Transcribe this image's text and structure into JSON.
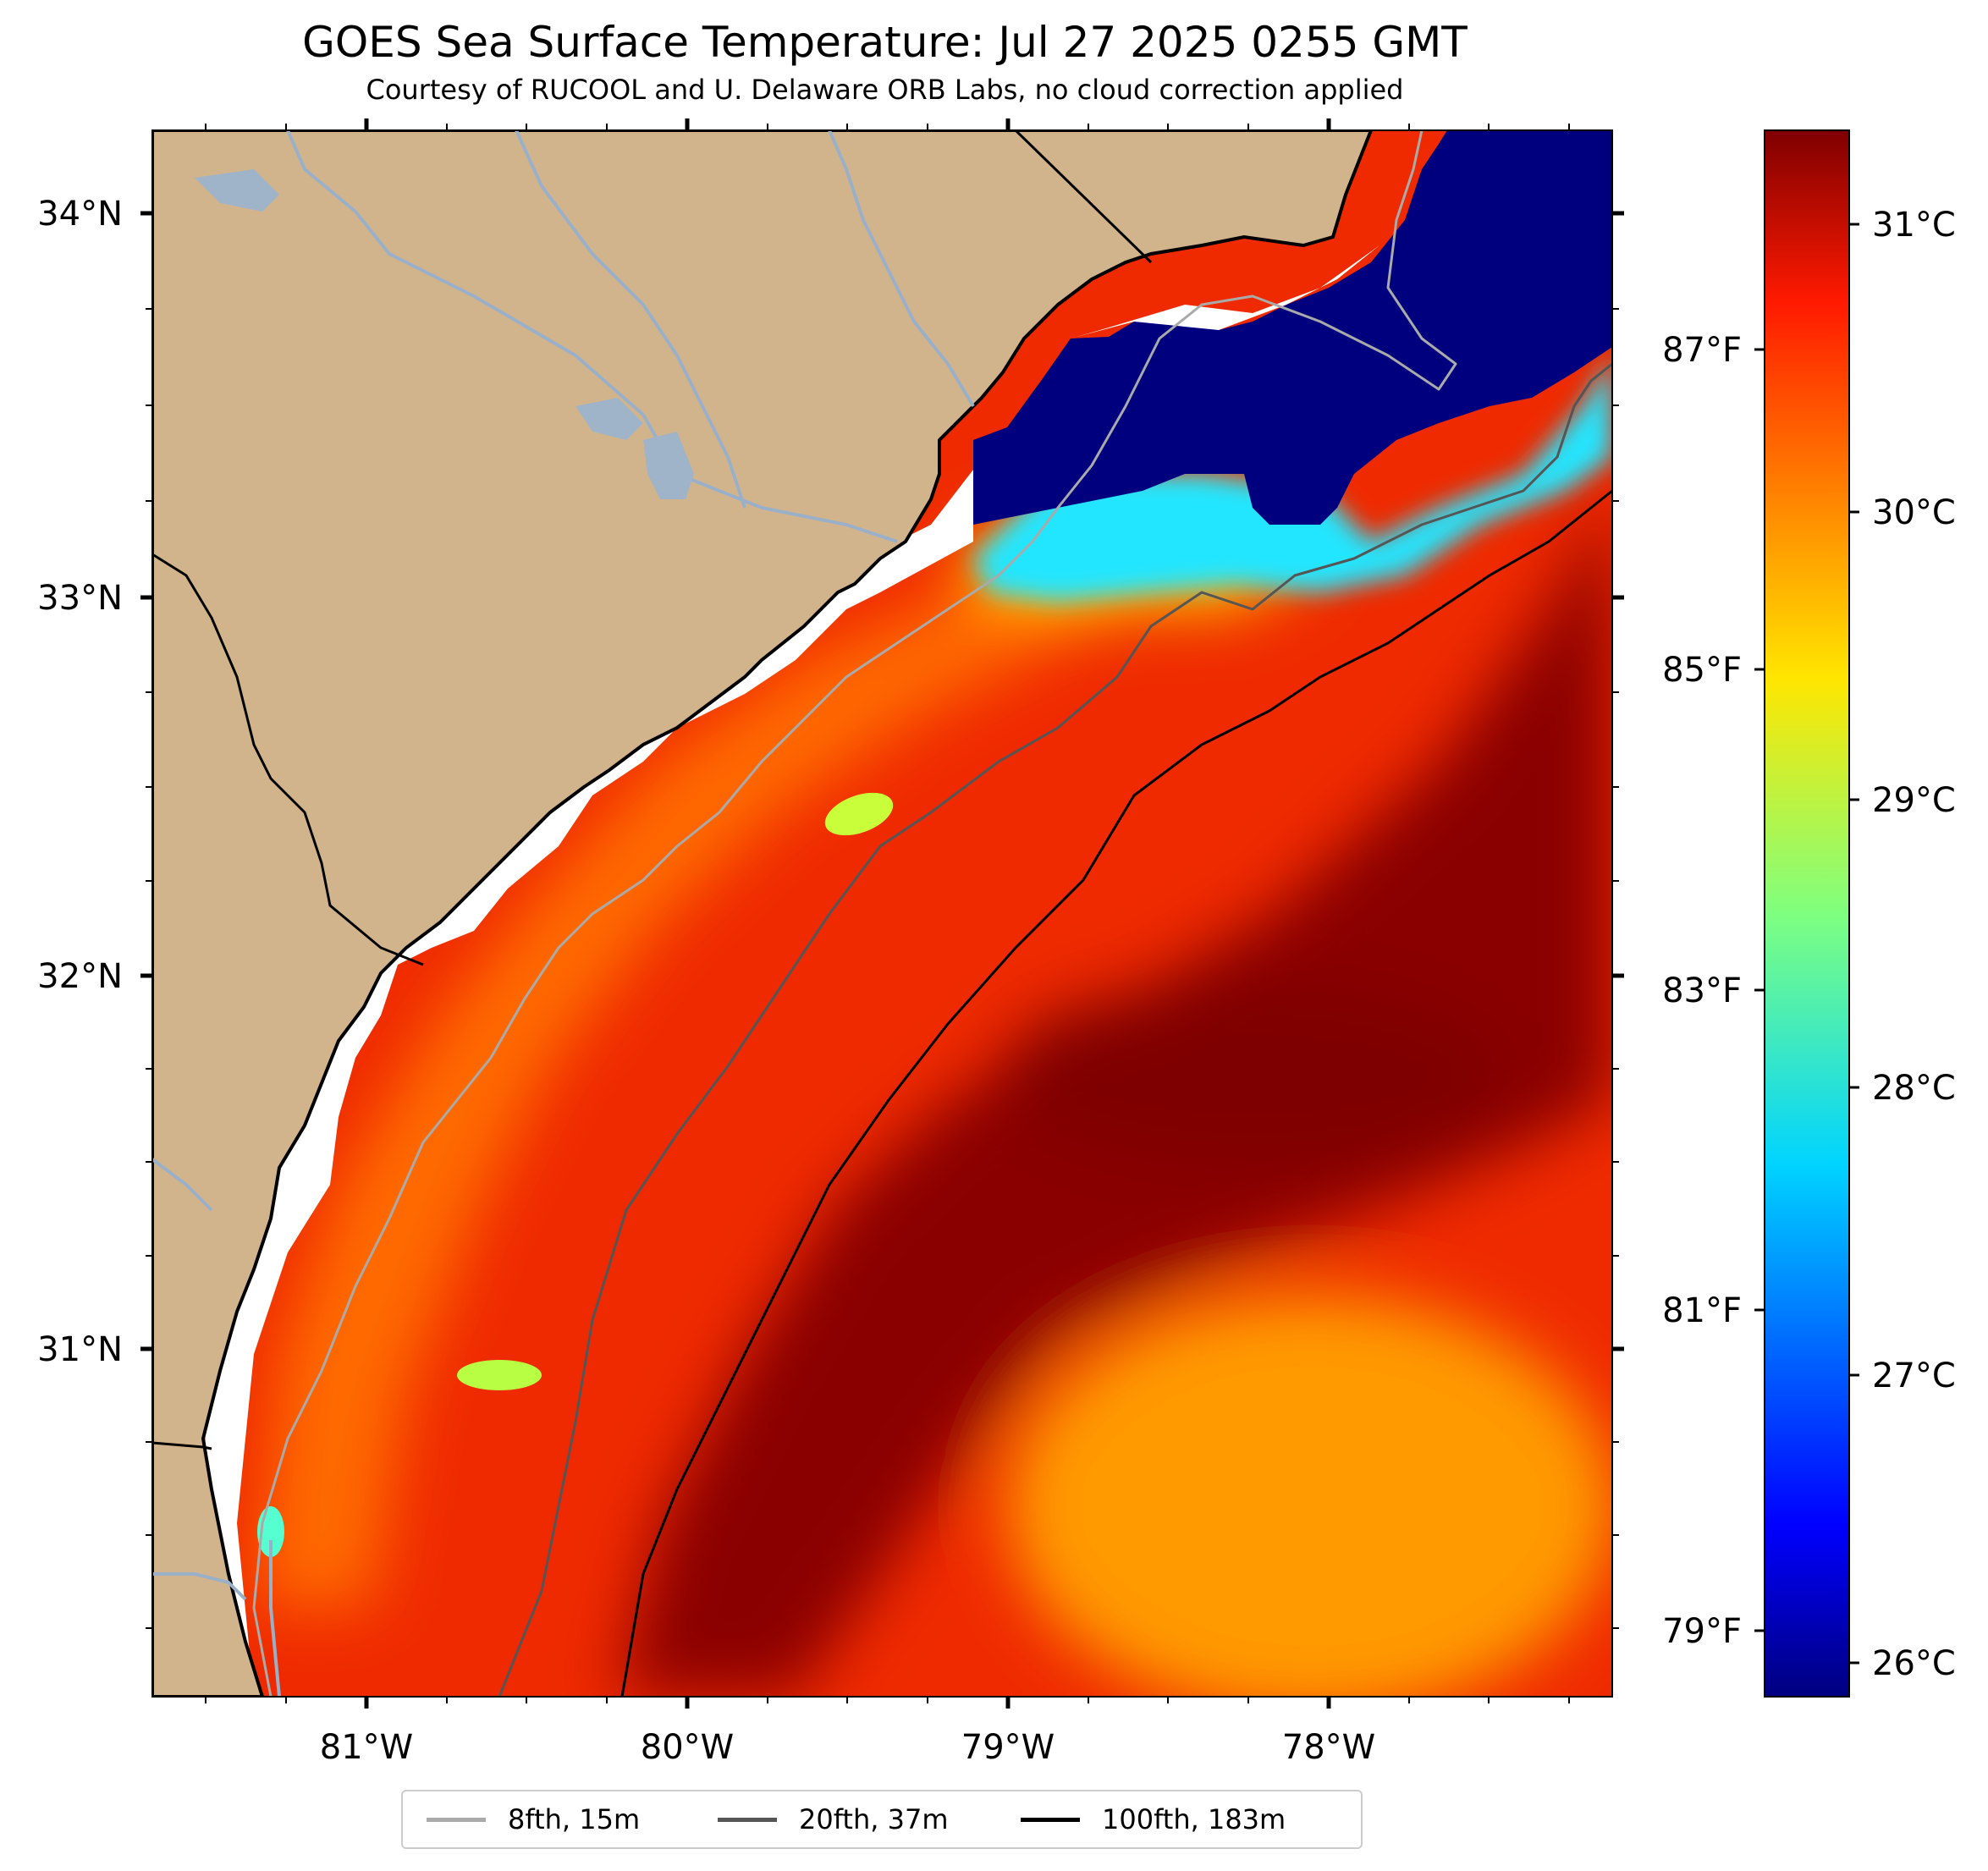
{
  "title": "GOES Sea Surface Temperature: Jul 27 2025 0255 GMT",
  "subtitle": "Courtesy of RUCOOL and U. Delaware ORB Labs, no cloud correction applied",
  "map": {
    "lon_labels": [
      "81°W",
      "80°W",
      "79°W",
      "78°W"
    ],
    "lat_labels": [
      "34°N",
      "33°N",
      "32°N",
      "31°N"
    ],
    "land_color": "#d2b48c",
    "nodata_color": "#ffffff",
    "isobaths_color_8fth": "#aaaaaa",
    "isobaths_color_20fth": "#555555",
    "isobaths_color_100fth": "#000000"
  },
  "colorbar": {
    "celsius_labels": [
      "31°C",
      "30°C",
      "29°C",
      "28°C",
      "27°C",
      "26°C"
    ],
    "fahrenheit_labels": [
      "87°F",
      "85°F",
      "83°F",
      "81°F",
      "79°F"
    ],
    "colormap": "jet",
    "min_c": 25.85,
    "max_c": 31.3
  },
  "legend": {
    "items": [
      {
        "label": "8fth, 15m",
        "color": "#aaaaaa"
      },
      {
        "label": "20fth, 37m",
        "color": "#555555"
      },
      {
        "label": "100fth, 183m",
        "color": "#000000"
      }
    ]
  }
}
